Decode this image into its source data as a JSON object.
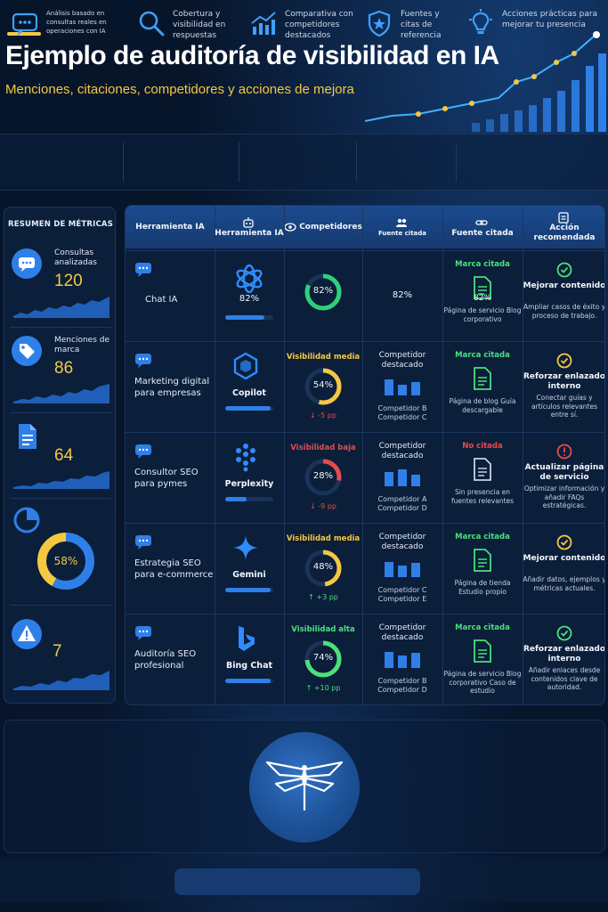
{
  "header": {
    "title": "Ejemplo de auditoría de visibilidad en IA",
    "subtitle": "Menciones, citaciones, competidores y acciones de mejora"
  },
  "features": [
    {
      "icon": "chat-bubble-icon",
      "label": "Análisis basado en consultas reales en operaciones con IA"
    },
    {
      "icon": "magnifier-icon",
      "label": "Cobertura y visibilidad en respuestas"
    },
    {
      "icon": "trend-chart-icon",
      "label": "Comparativa con competidores destacados"
    },
    {
      "icon": "shield-star-icon",
      "label": "Fuentes y citas de referencia"
    },
    {
      "icon": "lightbulb-icon",
      "label": "Acciones prácticas para mejorar tu presencia"
    }
  ],
  "metrics": {
    "title": "RESUMEN DE MÉTRICAS",
    "items": [
      {
        "icon": "chat-bubble-icon",
        "label": "Consultas analizadas",
        "value": "120"
      },
      {
        "icon": "tag-icon",
        "label": "Menciones de marca",
        "value": "86"
      },
      {
        "icon": "document-icon",
        "label": "",
        "value": "64"
      },
      {
        "icon": "pie-chart-icon",
        "label": "",
        "value": "58%",
        "fraction": 0.58
      },
      {
        "icon": "warning-icon",
        "label": "",
        "value": "7"
      }
    ]
  },
  "table": {
    "headers": {
      "consulta": "Herramienta IA",
      "herramienta": "Herramienta IA",
      "visibilidad": "Competidores",
      "competidores": "Fuente citada",
      "fuente": "Fuente citada",
      "accion": "Acción recomendada"
    },
    "rows": [
      {
        "query": "Chat IA",
        "tool": {
          "logo": "openai-knot-icon",
          "name": "",
          "pct": "82%",
          "bar": 0.82
        },
        "visibility": {
          "label": "",
          "color": "#2fd07a",
          "pct": "82%",
          "value": 0.82,
          "delta": ""
        },
        "competitors": {
          "title": "",
          "pct": "82%",
          "foot": ""
        },
        "source": {
          "status": "Marca citada",
          "color": "#4be07a",
          "pct": "82%",
          "foot": "Página de servicio Blog corporativo"
        },
        "action": {
          "icon": "check-circle-icon",
          "color": "#4be07a",
          "title": "Mejorar contenido",
          "desc": "Ampliar casos de éxito y proceso de trabajo."
        }
      },
      {
        "query": "Marketing digital para empresas",
        "tool": {
          "logo": "copilot-icon",
          "name": "Copilot",
          "pct": "",
          "bar": 0.95
        },
        "visibility": {
          "label": "Visibilidad media",
          "color": "#f5c842",
          "pct": "54%",
          "value": 0.54,
          "delta": "↓ -5 pp"
        },
        "competitors": {
          "title": "Competidor destacado",
          "pct": "",
          "foot": "Competidor B Competidor C"
        },
        "source": {
          "status": "Marca citada",
          "color": "#4be07a",
          "pct": "",
          "foot": "Página de blog Guía descargable"
        },
        "action": {
          "icon": "check-circle-icon",
          "color": "#f5c842",
          "title": "Reforzar enlazado interno",
          "desc": "Conectar guías y artículos relevantes entre sí."
        }
      },
      {
        "query": "Consultor SEO para pymes",
        "tool": {
          "logo": "perplexity-icon",
          "name": "Perplexity",
          "pct": "",
          "bar": 0.45
        },
        "visibility": {
          "label": "Visibilidad baja",
          "color": "#e84a4a",
          "pct": "28%",
          "value": 0.28,
          "delta": "↓ -9 pp"
        },
        "competitors": {
          "title": "Competidor destacado",
          "pct": "",
          "foot": "Competidor A Competidor D"
        },
        "source": {
          "status": "No citada",
          "color": "#e84a4a",
          "pct": "",
          "foot": "Sin presencia en fuentes relevantes"
        },
        "action": {
          "icon": "alert-circle-icon",
          "color": "#e84a4a",
          "title": "Actualizar página de servicio",
          "desc": "Optimizar información y añadir FAQs estratégicas."
        }
      },
      {
        "query": "Estrategia SEO para e-commerce",
        "tool": {
          "logo": "gemini-star-icon",
          "name": "Gemini",
          "pct": "",
          "bar": 0.95
        },
        "visibility": {
          "label": "Visibilidad media",
          "color": "#f5c842",
          "pct": "48%",
          "value": 0.48,
          "delta": "↑ +3 pp"
        },
        "competitors": {
          "title": "Competidor destacado",
          "pct": "",
          "foot": "Competidor C Competidor E"
        },
        "source": {
          "status": "Marca citada",
          "color": "#4be07a",
          "pct": "",
          "foot": "Página de tienda Estudio propio"
        },
        "action": {
          "icon": "check-circle-icon",
          "color": "#f5c842",
          "title": "Mejorar contenido",
          "desc": "Añadir datos, ejemplos y métricas actuales."
        }
      },
      {
        "query": "Auditoría SEO profesional",
        "tool": {
          "logo": "bing-b-icon",
          "name": "Bing Chat",
          "pct": "",
          "bar": 0.95
        },
        "visibility": {
          "label": "Visibilidad alta",
          "color": "#4be07a",
          "pct": "74%",
          "value": 0.74,
          "delta": "↑ +10 pp"
        },
        "competitors": {
          "title": "Competidor destacado",
          "pct": "",
          "foot": "Competidor B Competidor D"
        },
        "source": {
          "status": "Marca citada",
          "color": "#4be07a",
          "pct": "",
          "foot": "Página de servicio Blog corporativo Caso de estudio"
        },
        "action": {
          "icon": "check-circle-icon",
          "color": "#4be07a",
          "title": "Reforzar enlazado interno",
          "desc": "Añadir enlaces desde contenidos clave de autoridad."
        }
      }
    ]
  },
  "colors": {
    "accent": "#f5c842",
    "primary": "#2f7fe8",
    "good": "#4be07a",
    "bad": "#e84a4a",
    "background": "#07152b"
  },
  "brand": {
    "logo": "dragonfly-logo-icon"
  }
}
